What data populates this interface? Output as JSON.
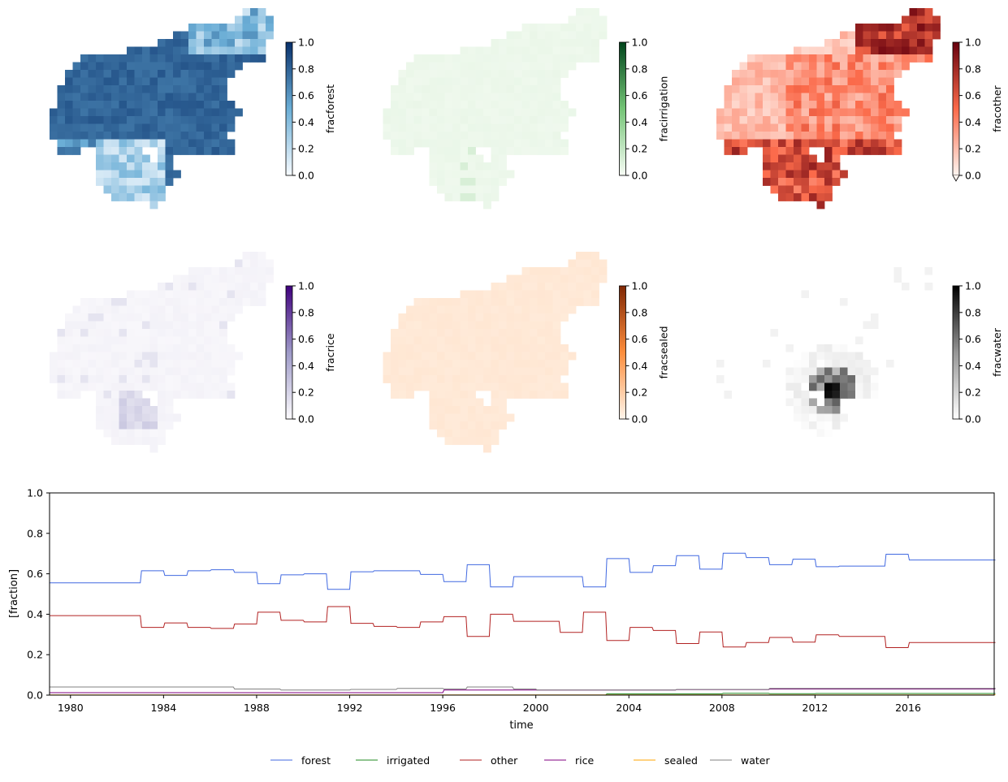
{
  "maps": [
    {
      "variable": "fracforest",
      "cmap": [
        "#f7fbff",
        "#6baed6",
        "#08306b"
      ],
      "ticks": [
        "0.0",
        "0.2",
        "0.4",
        "0.6",
        "0.8",
        "1.0"
      ],
      "extend_min": false
    },
    {
      "variable": "fracirrigation",
      "cmap": [
        "#f7fcf5",
        "#74c476",
        "#00441b"
      ],
      "ticks": [
        "0.0",
        "0.2",
        "0.4",
        "0.6",
        "0.8",
        "1.0"
      ],
      "extend_min": false
    },
    {
      "variable": "fracother",
      "cmap": [
        "#fff5f0",
        "#fb6a4a",
        "#67000d"
      ],
      "ticks": [
        "0.0",
        "0.2",
        "0.4",
        "0.6",
        "0.8",
        "1.0"
      ],
      "extend_min": true
    },
    {
      "variable": "fracrice",
      "cmap": [
        "#fcfbfd",
        "#9e9ac8",
        "#3f007d"
      ],
      "ticks": [
        "0.0",
        "0.2",
        "0.4",
        "0.6",
        "0.8",
        "1.0"
      ],
      "extend_min": false
    },
    {
      "variable": "fracsealed",
      "cmap": [
        "#fff5eb",
        "#fd8d3c",
        "#7f2704"
      ],
      "ticks": [
        "0.0",
        "0.2",
        "0.4",
        "0.6",
        "0.8",
        "1.0"
      ],
      "extend_min": false
    },
    {
      "variable": "fracwater",
      "cmap": [
        "#ffffff",
        "#969696",
        "#000000"
      ],
      "ticks": [
        "0.0",
        "0.2",
        "0.4",
        "0.6",
        "0.8",
        "1.0"
      ],
      "extend_min": false
    }
  ],
  "chart_data": {
    "type": "line",
    "xlabel": "time",
    "ylabel": "[fraction]",
    "xlim": [
      1979.1,
      2019.7
    ],
    "ylim": [
      0,
      1
    ],
    "xticks": [
      "1980",
      "1984",
      "1988",
      "1992",
      "1996",
      "2000",
      "2004",
      "2008",
      "2012",
      "2016"
    ],
    "yticks": [
      "0.0",
      "0.2",
      "0.4",
      "0.6",
      "0.8",
      "1.0"
    ],
    "legend_placement": "bottom-center",
    "series": [
      {
        "name": "forest",
        "color": "#4169e1",
        "x": [
          1979.1,
          1983,
          1984,
          1985,
          1986,
          1987,
          1988,
          1989,
          1990,
          1991,
          1992,
          1993,
          1995,
          1996,
          1997,
          1998,
          1999,
          2002,
          2003,
          2004,
          2005,
          2006,
          2007,
          2008,
          2009,
          2010,
          2011,
          2012,
          2013,
          2015,
          2016,
          2019.7
        ],
        "y": [
          0.555,
          0.615,
          0.592,
          0.615,
          0.62,
          0.607,
          0.551,
          0.595,
          0.6,
          0.523,
          0.61,
          0.615,
          0.597,
          0.561,
          0.645,
          0.535,
          0.586,
          0.535,
          0.675,
          0.607,
          0.64,
          0.69,
          0.623,
          0.702,
          0.68,
          0.645,
          0.672,
          0.635,
          0.638,
          0.697,
          0.668,
          0.668
        ]
      },
      {
        "name": "irrigated",
        "color": "#228b22",
        "x": [
          1979.1,
          2002,
          2003,
          2008,
          2010,
          2012,
          2019.7
        ],
        "y": [
          0.0,
          0.0,
          0.006,
          0.009,
          0.007,
          0.008,
          0.008
        ]
      },
      {
        "name": "other",
        "color": "#b22222",
        "x": [
          1979.1,
          1983,
          1984,
          1985,
          1986,
          1987,
          1988,
          1989,
          1990,
          1991,
          1992,
          1993,
          1994,
          1995,
          1996,
          1997,
          1998,
          1999,
          2001,
          2002,
          2003,
          2004,
          2005,
          2006,
          2007,
          2008,
          2009,
          2010,
          2011,
          2012,
          2013,
          2015,
          2016,
          2019.7
        ],
        "y": [
          0.393,
          0.335,
          0.357,
          0.335,
          0.33,
          0.352,
          0.41,
          0.37,
          0.362,
          0.438,
          0.355,
          0.34,
          0.335,
          0.362,
          0.388,
          0.29,
          0.4,
          0.365,
          0.31,
          0.41,
          0.27,
          0.335,
          0.32,
          0.255,
          0.312,
          0.238,
          0.26,
          0.285,
          0.262,
          0.298,
          0.29,
          0.235,
          0.26,
          0.26
        ]
      },
      {
        "name": "rice",
        "color": "#800080",
        "x": [
          1979.1,
          1996,
          2000,
          2006,
          2010,
          2019.7
        ],
        "y": [
          0.012,
          0.025,
          0.025,
          0.027,
          0.03,
          0.032
        ]
      },
      {
        "name": "sealed",
        "color": "#ffa500",
        "x": [
          1979.1,
          2019.7
        ],
        "y": [
          0.001,
          0.002
        ]
      },
      {
        "name": "water",
        "color": "#808080",
        "x": [
          1979.1,
          1987,
          1989,
          1992,
          1994,
          1996,
          1997,
          1999,
          2000,
          2006,
          2010,
          2019.7
        ],
        "y": [
          0.04,
          0.03,
          0.025,
          0.028,
          0.033,
          0.03,
          0.04,
          0.03,
          0.025,
          0.028,
          0.033,
          0.034
        ]
      }
    ]
  }
}
